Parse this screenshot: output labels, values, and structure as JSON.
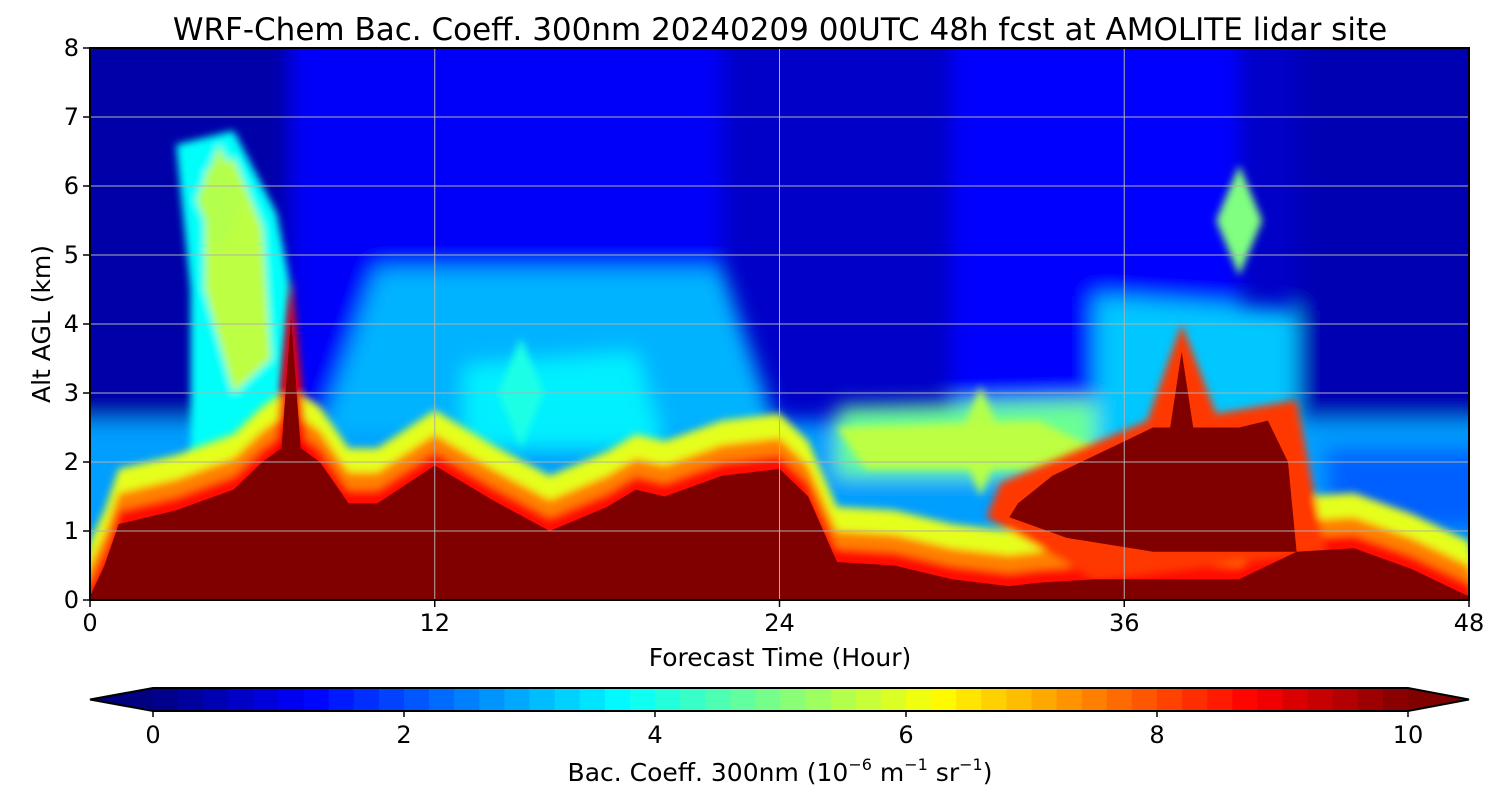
{
  "chart_data": {
    "type": "heatmap",
    "title": "WRF-Chem Bac. Coeff. 300nm  20240209 00UTC 48h fcst at AMOLITE lidar site",
    "xlabel": "Forecast Time (Hour)",
    "ylabel": "Alt AGL (km)",
    "xlim": [
      0,
      48
    ],
    "ylim": [
      0,
      8
    ],
    "xticks": [
      0,
      12,
      24,
      36,
      48
    ],
    "yticks": [
      0,
      1,
      2,
      3,
      4,
      5,
      6,
      7,
      8
    ],
    "grid": true,
    "colorbar": {
      "label_main": "Bac. Coeff. 300nm  (10",
      "label_exp1": "−6",
      "label_mid": " m",
      "label_exp2": "−1",
      "label_mid2": " sr",
      "label_exp3": "−1",
      "label_end": ")",
      "range": [
        0,
        10
      ],
      "ticks": [
        0,
        2,
        4,
        6,
        8,
        10
      ],
      "colormap": "jet",
      "extend": "both",
      "levels": 50
    },
    "field_description_units": "backscatter coefficient, 10^-6 m^-1 sr^-1",
    "hours": [
      0,
      0.5,
      1,
      2,
      3,
      4,
      5,
      6,
      7,
      8,
      9,
      10,
      12,
      14,
      16,
      18,
      19,
      20,
      22,
      24,
      25,
      26,
      28,
      30,
      32,
      33,
      35,
      37,
      38,
      40,
      41,
      42,
      44,
      46,
      48
    ],
    "altitudes_km": [
      0,
      0.25,
      0.5,
      0.75,
      1,
      1.25,
      1.5,
      1.75,
      2,
      2.25,
      2.5,
      2.75,
      3,
      3.5,
      4,
      4.5,
      5,
      5.5,
      6,
      6.5,
      7,
      7.5,
      8
    ],
    "surface_layer_top_km": [
      0.05,
      0.5,
      1.1,
      1.2,
      1.3,
      1.45,
      1.6,
      2.0,
      2.3,
      2.0,
      1.4,
      1.4,
      1.95,
      1.45,
      1.0,
      1.35,
      1.6,
      1.5,
      1.8,
      1.9,
      1.5,
      0.55,
      0.5,
      0.3,
      0.2,
      0.25,
      0.3,
      0.3,
      0.3,
      0.3,
      0.5,
      0.7,
      0.75,
      0.45,
      0.05
    ],
    "elevated_layer": {
      "hour_start": 32,
      "hour_end": 42,
      "base_km": 0.7,
      "top_km": 2.5,
      "peak_hour": 38,
      "peak_top_km": 3.6
    },
    "plume_hour7": {
      "hour": 7,
      "top_km": 4.7
    },
    "mid_level_features": [
      {
        "hour": 4.5,
        "alt_km": 5.8,
        "value": 5.5
      },
      {
        "hour": 15,
        "alt_km": 3.0,
        "value": 4.0
      },
      {
        "hour": 31,
        "alt_km": 2.3,
        "value": 5.5
      },
      {
        "hour": 40,
        "alt_km": 5.5,
        "value": 5.0
      }
    ]
  }
}
